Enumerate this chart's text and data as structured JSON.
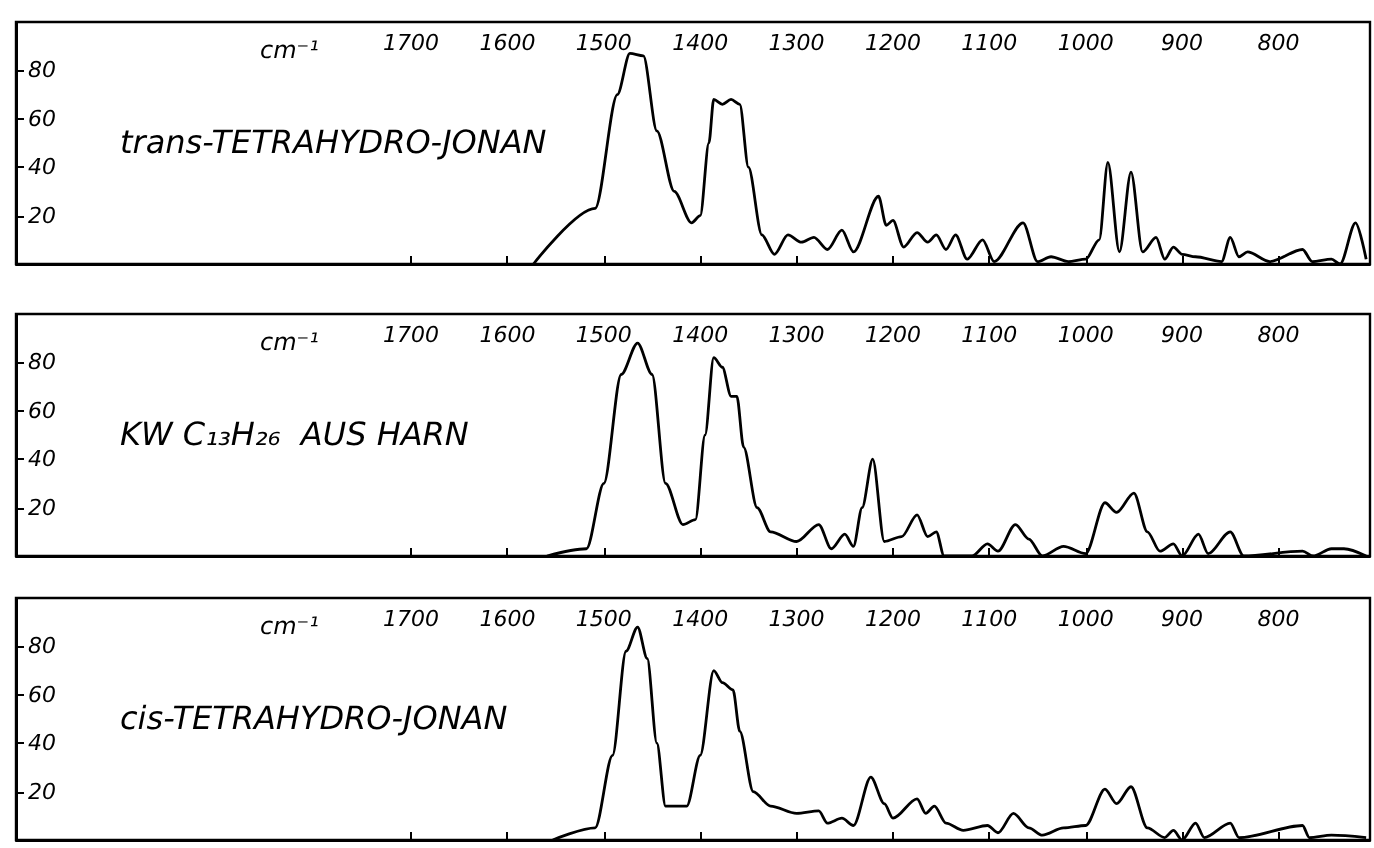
{
  "chart_data": [
    {
      "type": "line",
      "title": "trans-TETRAHYDRO-JONAN",
      "xlabel": "cm⁻¹",
      "xlim": [
        2110,
        705
      ],
      "xticks": [
        1700,
        1600,
        1500,
        1400,
        1300,
        1200,
        1100,
        1000,
        900,
        800
      ],
      "ylim": [
        0,
        100
      ],
      "yticks": [
        20,
        40,
        60,
        80
      ],
      "grid": false,
      "marker": "none",
      "line_style": "solid",
      "series": [
        {
          "color": "#000000",
          "x": [
            1573,
            1509,
            1486,
            1473,
            1459,
            1445,
            1427,
            1409,
            1400,
            1391,
            1386,
            1377,
            1368,
            1359,
            1350,
            1336,
            1323,
            1309,
            1295,
            1282,
            1268,
            1253,
            1241,
            1215,
            1207,
            1200,
            1189,
            1175,
            1164,
            1155,
            1145,
            1135,
            1123,
            1107,
            1095,
            1065,
            1050,
            1036,
            1018,
            1000,
            986,
            977,
            965,
            953,
            941,
            927,
            918,
            909,
            900,
            886,
            859,
            850,
            841,
            832,
            809,
            775,
            765,
            745,
            736,
            720,
            709
          ],
          "values": [
            0,
            23,
            70,
            87,
            86,
            55,
            30,
            17,
            20,
            50,
            68,
            66,
            68,
            66,
            40,
            12,
            4,
            12,
            9,
            11,
            6,
            14,
            5,
            28,
            16,
            18,
            7,
            13,
            9,
            12,
            6,
            12,
            2,
            10,
            1,
            17,
            1,
            3,
            1,
            2,
            10,
            42,
            5,
            38,
            5,
            11,
            2,
            7,
            4,
            3,
            1,
            11,
            3,
            5,
            1,
            6,
            1,
            2,
            0,
            17,
            2
          ]
        }
      ]
    },
    {
      "type": "line",
      "title": "KW C₁₃H₂₆  AUS HARN",
      "xlabel": "cm⁻¹",
      "xlim": [
        2110,
        705
      ],
      "xticks": [
        1700,
        1600,
        1500,
        1400,
        1300,
        1200,
        1100,
        1000,
        900,
        800
      ],
      "ylim": [
        0,
        100
      ],
      "yticks": [
        20,
        40,
        60,
        80
      ],
      "grid": false,
      "marker": "none",
      "line_style": "solid",
      "series": [
        {
          "color": "#000000",
          "x": [
            1559,
            1518,
            1500,
            1482,
            1465,
            1450,
            1436,
            1418,
            1405,
            1395,
            1386,
            1377,
            1368,
            1362,
            1355,
            1341,
            1327,
            1300,
            1277,
            1264,
            1250,
            1241,
            1232,
            1221,
            1209,
            1191,
            1175,
            1164,
            1155,
            1147,
            1118,
            1102,
            1091,
            1073,
            1059,
            1045,
            1023,
            1000,
            980,
            968,
            950,
            936,
            923,
            909,
            900,
            883,
            873,
            850,
            836,
            775,
            764,
            745,
            732,
            709
          ],
          "values": [
            0,
            3,
            30,
            75,
            88,
            75,
            30,
            13,
            15,
            50,
            82,
            78,
            66,
            66,
            45,
            20,
            10,
            6,
            13,
            3,
            9,
            4,
            20,
            40,
            6,
            8,
            17,
            8,
            10,
            0,
            0,
            5,
            2,
            13,
            7,
            0,
            4,
            1,
            22,
            18,
            26,
            10,
            2,
            5,
            0,
            9,
            1,
            10,
            0,
            2,
            0,
            3,
            3,
            0
          ]
        }
      ]
    },
    {
      "type": "line",
      "title": "cis-TETRAHYDRO-JONAN",
      "xlabel": "cm⁻¹",
      "xlim": [
        2110,
        705
      ],
      "xticks": [
        1700,
        1600,
        1500,
        1400,
        1300,
        1200,
        1100,
        1000,
        900,
        800
      ],
      "ylim": [
        0,
        100
      ],
      "yticks": [
        20,
        40,
        60,
        80
      ],
      "grid": false,
      "marker": "none",
      "line_style": "solid",
      "series": [
        {
          "color": "#000000",
          "x": [
            1553,
            1509,
            1491,
            1477,
            1465,
            1455,
            1445,
            1436,
            1414,
            1400,
            1386,
            1377,
            1366,
            1359,
            1345,
            1327,
            1300,
            1277,
            1268,
            1253,
            1241,
            1223,
            1209,
            1200,
            1175,
            1166,
            1157,
            1145,
            1127,
            1102,
            1091,
            1075,
            1059,
            1045,
            1023,
            1000,
            980,
            968,
            953,
            936,
            918,
            909,
            900,
            886,
            877,
            850,
            841,
            775,
            768,
            745,
            709
          ],
          "values": [
            0,
            5,
            35,
            78,
            88,
            75,
            40,
            14,
            14,
            35,
            70,
            65,
            62,
            45,
            20,
            14,
            11,
            12,
            7,
            9,
            6,
            26,
            15,
            9,
            17,
            11,
            14,
            7,
            4,
            6,
            3,
            11,
            5,
            2,
            5,
            6,
            21,
            15,
            22,
            5,
            1,
            4,
            0,
            7,
            1,
            7,
            1,
            6,
            1,
            2,
            1
          ]
        }
      ]
    }
  ]
}
